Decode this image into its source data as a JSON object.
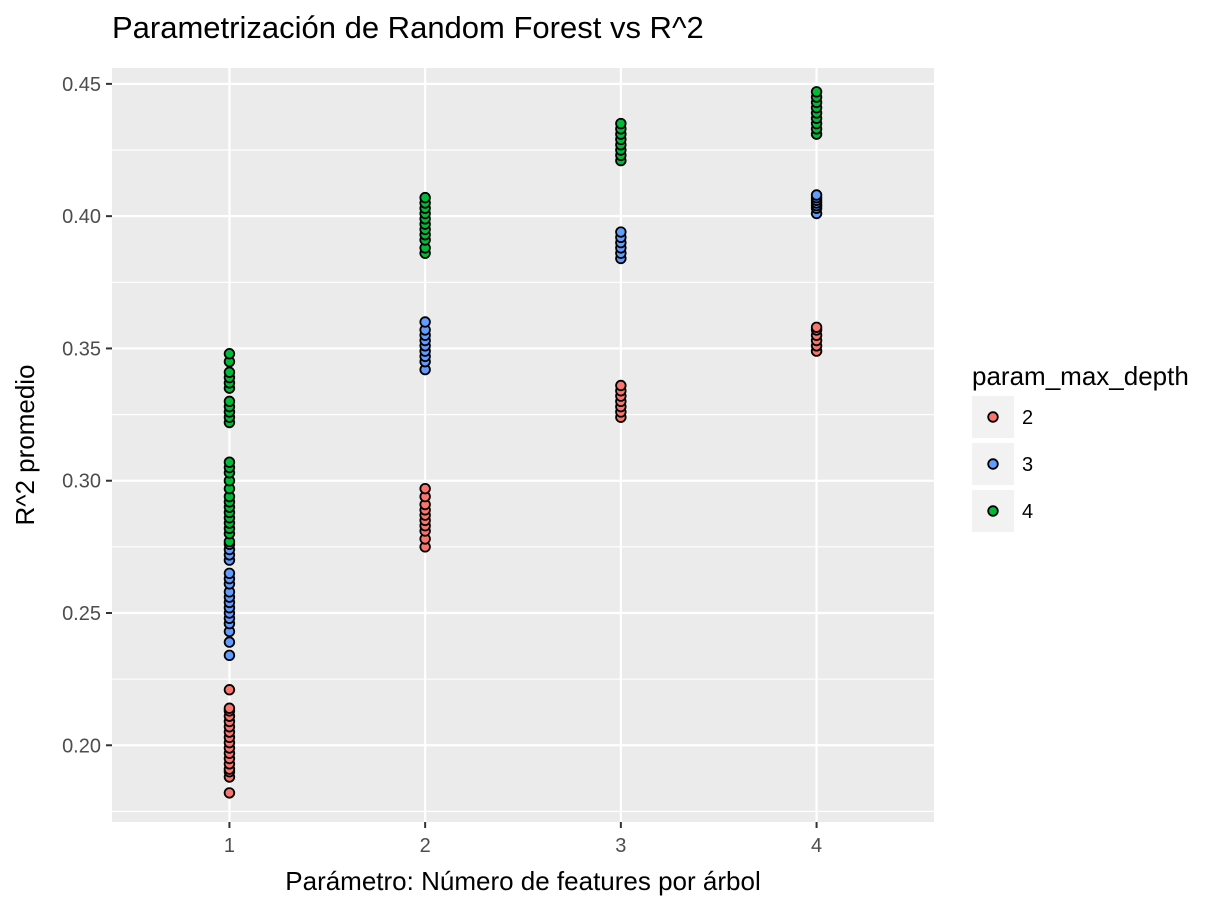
{
  "chart_data": {
    "type": "scatter",
    "title": "Parametrización de Random Forest vs R^2",
    "xlabel": "Parámetro: Número de features por árbol",
    "ylabel": "R^2 promedio",
    "x_ticks": [
      1,
      2,
      3,
      4
    ],
    "y_ticks": [
      0.2,
      0.25,
      0.3,
      0.35,
      0.4,
      0.45
    ],
    "y_tick_labels": [
      "0.20",
      "0.25",
      "0.30",
      "0.35",
      "0.40",
      "0.45"
    ],
    "xlim": [
      0.4,
      4.6
    ],
    "ylim": [
      0.171,
      0.456
    ],
    "grid": true,
    "legend_position": "right",
    "legend_title": "param_max_depth",
    "series": [
      {
        "name": "2",
        "color": "#F8766D",
        "points": [
          [
            1,
            0.182
          ],
          [
            1,
            0.188
          ],
          [
            1,
            0.19
          ],
          [
            1,
            0.191
          ],
          [
            1,
            0.193
          ],
          [
            1,
            0.195
          ],
          [
            1,
            0.197
          ],
          [
            1,
            0.199
          ],
          [
            1,
            0.201
          ],
          [
            1,
            0.203
          ],
          [
            1,
            0.205
          ],
          [
            1,
            0.207
          ],
          [
            1,
            0.209
          ],
          [
            1,
            0.211
          ],
          [
            1,
            0.213
          ],
          [
            1,
            0.214
          ],
          [
            1,
            0.221
          ],
          [
            2,
            0.275
          ],
          [
            2,
            0.278
          ],
          [
            2,
            0.281
          ],
          [
            2,
            0.283
          ],
          [
            2,
            0.285
          ],
          [
            2,
            0.287
          ],
          [
            2,
            0.289
          ],
          [
            2,
            0.291
          ],
          [
            2,
            0.294
          ],
          [
            2,
            0.297
          ],
          [
            3,
            0.324
          ],
          [
            3,
            0.326
          ],
          [
            3,
            0.328
          ],
          [
            3,
            0.33
          ],
          [
            3,
            0.332
          ],
          [
            3,
            0.334
          ],
          [
            3,
            0.336
          ],
          [
            4,
            0.349
          ],
          [
            4,
            0.351
          ],
          [
            4,
            0.353
          ],
          [
            4,
            0.355
          ],
          [
            4,
            0.357
          ],
          [
            4,
            0.358
          ]
        ]
      },
      {
        "name": "3",
        "color": "#619CFF",
        "points": [
          [
            1,
            0.234
          ],
          [
            1,
            0.239
          ],
          [
            1,
            0.243
          ],
          [
            1,
            0.246
          ],
          [
            1,
            0.248
          ],
          [
            1,
            0.25
          ],
          [
            1,
            0.252
          ],
          [
            1,
            0.254
          ],
          [
            1,
            0.256
          ],
          [
            1,
            0.258
          ],
          [
            1,
            0.261
          ],
          [
            1,
            0.263
          ],
          [
            1,
            0.265
          ],
          [
            1,
            0.27
          ],
          [
            1,
            0.272
          ],
          [
            1,
            0.274
          ],
          [
            1,
            0.276
          ],
          [
            2,
            0.342
          ],
          [
            2,
            0.345
          ],
          [
            2,
            0.347
          ],
          [
            2,
            0.349
          ],
          [
            2,
            0.351
          ],
          [
            2,
            0.353
          ],
          [
            2,
            0.355
          ],
          [
            2,
            0.357
          ],
          [
            2,
            0.36
          ],
          [
            3,
            0.384
          ],
          [
            3,
            0.386
          ],
          [
            3,
            0.388
          ],
          [
            3,
            0.39
          ],
          [
            3,
            0.392
          ],
          [
            3,
            0.394
          ],
          [
            4,
            0.401
          ],
          [
            4,
            0.403
          ],
          [
            4,
            0.404
          ],
          [
            4,
            0.405
          ],
          [
            4,
            0.406
          ],
          [
            4,
            0.407
          ],
          [
            4,
            0.408
          ]
        ]
      },
      {
        "name": "4",
        "color": "#00BA38",
        "points": [
          [
            1,
            0.277
          ],
          [
            1,
            0.28
          ],
          [
            1,
            0.282
          ],
          [
            1,
            0.284
          ],
          [
            1,
            0.286
          ],
          [
            1,
            0.288
          ],
          [
            1,
            0.29
          ],
          [
            1,
            0.292
          ],
          [
            1,
            0.294
          ],
          [
            1,
            0.297
          ],
          [
            1,
            0.3
          ],
          [
            1,
            0.303
          ],
          [
            1,
            0.305
          ],
          [
            1,
            0.307
          ],
          [
            1,
            0.322
          ],
          [
            1,
            0.324
          ],
          [
            1,
            0.326
          ],
          [
            1,
            0.328
          ],
          [
            1,
            0.33
          ],
          [
            1,
            0.335
          ],
          [
            1,
            0.337
          ],
          [
            1,
            0.339
          ],
          [
            1,
            0.341
          ],
          [
            1,
            0.345
          ],
          [
            1,
            0.348
          ],
          [
            2,
            0.386
          ],
          [
            2,
            0.388
          ],
          [
            2,
            0.391
          ],
          [
            2,
            0.393
          ],
          [
            2,
            0.395
          ],
          [
            2,
            0.397
          ],
          [
            2,
            0.399
          ],
          [
            2,
            0.401
          ],
          [
            2,
            0.403
          ],
          [
            2,
            0.405
          ],
          [
            2,
            0.407
          ],
          [
            3,
            0.421
          ],
          [
            3,
            0.423
          ],
          [
            3,
            0.425
          ],
          [
            3,
            0.427
          ],
          [
            3,
            0.429
          ],
          [
            3,
            0.431
          ],
          [
            3,
            0.433
          ],
          [
            3,
            0.435
          ],
          [
            4,
            0.431
          ],
          [
            4,
            0.433
          ],
          [
            4,
            0.435
          ],
          [
            4,
            0.437
          ],
          [
            4,
            0.439
          ],
          [
            4,
            0.441
          ],
          [
            4,
            0.443
          ],
          [
            4,
            0.445
          ],
          [
            4,
            0.447
          ]
        ]
      }
    ]
  }
}
